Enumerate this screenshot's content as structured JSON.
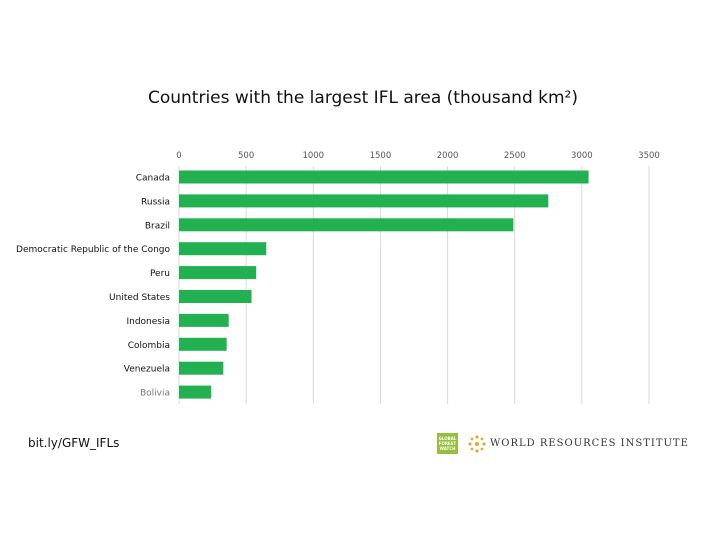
{
  "chart_data": {
    "type": "bar",
    "orientation": "horizontal",
    "title": "Countries with the largest IFL area (thousand km²)",
    "categories": [
      "Canada",
      "Russia",
      "Brazil",
      "Democratic Republic of the Congo",
      "Peru",
      "United States",
      "Indonesia",
      "Colombia",
      "Venezuela",
      "Bolivia"
    ],
    "values": [
      3050,
      2750,
      2490,
      650,
      575,
      540,
      370,
      355,
      330,
      240
    ],
    "x_ticks": [
      0,
      500,
      1000,
      1500,
      2000,
      2500,
      3000,
      3500
    ],
    "xlim": [
      0,
      3500
    ],
    "grid": true,
    "tick_position": "top",
    "colors": {
      "bar": "#22b050",
      "grid": "#d9d9d9",
      "highlight_label": "#777777"
    },
    "highlighted_category": "Bolivia"
  },
  "footer": {
    "link": "bit.ly/GFW_IFLs",
    "gfw_logo_text": "GLOBAL FOREST WATCH",
    "wri_text": "WORLD RESOURCES INSTITUTE"
  }
}
